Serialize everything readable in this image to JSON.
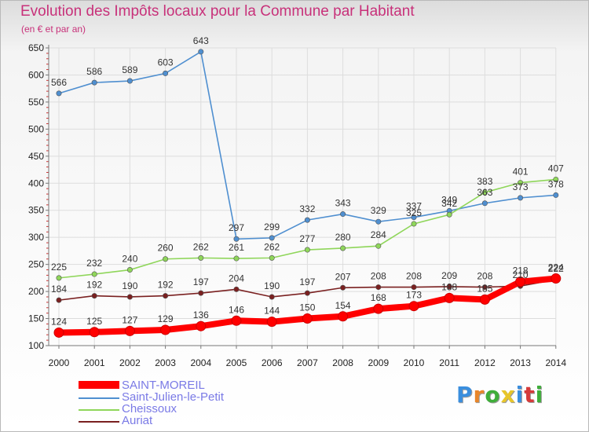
{
  "title": "Evolution des Impôts locaux pour la Commune par Habitant",
  "subtitle": "(en € et par an)",
  "brand": {
    "text": "Proxiti",
    "letter_colors": [
      "#3a8ede",
      "#e8862a",
      "#3fae3a",
      "#e8c62a",
      "#3a8ede",
      "#d63a3a",
      "#3fae3a"
    ]
  },
  "chart_data": {
    "type": "line",
    "x": [
      2000,
      2001,
      2002,
      2003,
      2004,
      2005,
      2006,
      2007,
      2008,
      2009,
      2010,
      2011,
      2012,
      2013,
      2014
    ],
    "xticks": [
      "2000",
      "2001",
      "2002",
      "2003",
      "2004",
      "2005",
      "2006",
      "2007",
      "2008",
      "2009",
      "2010",
      "2011",
      "2012",
      "2013",
      "2014"
    ],
    "yticks": [
      "100",
      "150",
      "200",
      "250",
      "300",
      "350",
      "400",
      "450",
      "500",
      "550",
      "600",
      "650"
    ],
    "ylim": [
      100,
      650
    ],
    "grid": true,
    "legend_position": "bottom-left",
    "series": [
      {
        "name": "SAINT-MOREIL",
        "color": "#ff0000",
        "emphasis": true,
        "values": [
          124,
          125,
          127,
          129,
          136,
          146,
          144,
          150,
          154,
          168,
          173,
          188,
          185,
          218,
          224
        ],
        "labels": [
          "124",
          "125",
          "127",
          "129",
          "136",
          "146",
          "144",
          "150",
          "154",
          "168",
          "173",
          "188",
          "185",
          "218",
          "224"
        ]
      },
      {
        "name": "Saint-Julien-le-Petit",
        "color": "#4f8fd0",
        "emphasis": false,
        "values": [
          566,
          586,
          589,
          603,
          643,
          297,
          299,
          332,
          343,
          329,
          337,
          349,
          363,
          373,
          378
        ],
        "labels": [
          "566",
          "586",
          "589",
          "603",
          "643",
          "297",
          "299",
          "332",
          "343",
          "329",
          "337",
          "349",
          "363",
          "373",
          "378"
        ]
      },
      {
        "name": "Cheissoux",
        "color": "#8fd65a",
        "emphasis": false,
        "values": [
          225,
          232,
          240,
          260,
          262,
          261,
          262,
          277,
          280,
          284,
          325,
          342,
          383,
          401,
          407
        ],
        "labels": [
          "225",
          "232",
          "240",
          "260",
          "262",
          "261",
          "262",
          "277",
          "280",
          "284",
          "325",
          "342",
          "383",
          "401",
          "407"
        ]
      },
      {
        "name": "Auriat",
        "color": "#7a2020",
        "emphasis": false,
        "values": [
          184,
          192,
          190,
          192,
          197,
          204,
          190,
          197,
          207,
          208,
          208,
          209,
          208,
          210,
          222
        ],
        "labels": [
          "184",
          "192",
          "190",
          "192",
          "197",
          "204",
          "190",
          "197",
          "207",
          "208",
          "208",
          "209",
          "208",
          "210",
          "222"
        ]
      }
    ]
  }
}
